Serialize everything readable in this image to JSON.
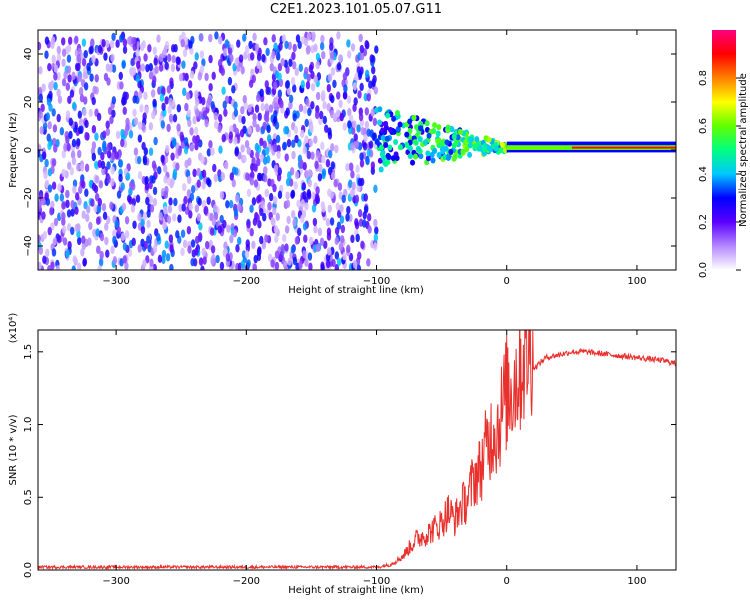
{
  "title": "C2E1.2023.101.05.07.G11",
  "chart_data": [
    {
      "type": "heatmap",
      "xlabel": "Height of straight line (km)",
      "ylabel": "Frequency (Hz)",
      "xlim": [
        -360,
        130
      ],
      "ylim": [
        -50,
        50
      ],
      "xticks": [
        -300,
        -200,
        -100,
        0,
        100
      ],
      "yticks": [
        -40,
        -20,
        0,
        20,
        40
      ],
      "grid": false,
      "colorbar": {
        "label": "Normalized spectral amplitude",
        "range": [
          0,
          1
        ],
        "ticks": [
          "0.0",
          "0.2",
          "0.4",
          "0.6",
          "0.8"
        ],
        "colors": [
          "#ffffff",
          "#b488ff",
          "#5a00ff",
          "#0000ff",
          "#00c8ff",
          "#00ff80",
          "#60ff00",
          "#ffff00",
          "#ff8000",
          "#ff0000",
          "#ff0080"
        ]
      },
      "regions": [
        {
          "x_range": [
            -360,
            -100
          ],
          "y_range": [
            -50,
            48
          ],
          "amplitude": 0.12,
          "pattern": "noise"
        },
        {
          "x_range": [
            -100,
            0
          ],
          "y_range": [
            -10,
            15
          ],
          "amplitude": 0.35,
          "pattern": "converging"
        },
        {
          "x_range": [
            0,
            130
          ],
          "y_range": [
            0,
            2
          ],
          "amplitude": 0.9,
          "pattern": "narrow-band"
        }
      ]
    },
    {
      "type": "line",
      "xlabel": "Height of straight line (km)",
      "ylabel": "SNR (10 * v/v)",
      "y_multiplier": "(x10⁴)",
      "xlim": [
        -360,
        130
      ],
      "ylim": [
        0,
        1.65
      ],
      "xticks": [
        -300,
        -200,
        -100,
        0,
        100
      ],
      "yticks": [
        "0.0",
        "0.5",
        "1.0",
        "1.5"
      ],
      "color": "#e8302c",
      "x": [
        -360,
        -300,
        -200,
        -110,
        -100,
        -90,
        -80,
        -70,
        -60,
        -50,
        -45,
        -40,
        -35,
        -30,
        -25,
        -20,
        -15,
        -12,
        -10,
        -8,
        -5,
        -2,
        0,
        5,
        10,
        15,
        20,
        25,
        30,
        40,
        50,
        60,
        70,
        80,
        90,
        100,
        110,
        120,
        130
      ],
      "y": [
        0.02,
        0.02,
        0.02,
        0.02,
        0.02,
        0.03,
        0.08,
        0.18,
        0.22,
        0.28,
        0.35,
        0.3,
        0.38,
        0.42,
        0.55,
        0.6,
        0.75,
        0.8,
        0.85,
        0.82,
        0.9,
        1.0,
        1.05,
        1.1,
        1.2,
        1.3,
        1.38,
        1.42,
        1.46,
        1.48,
        1.5,
        1.5,
        1.49,
        1.48,
        1.47,
        1.46,
        1.45,
        1.44,
        1.42
      ]
    }
  ]
}
